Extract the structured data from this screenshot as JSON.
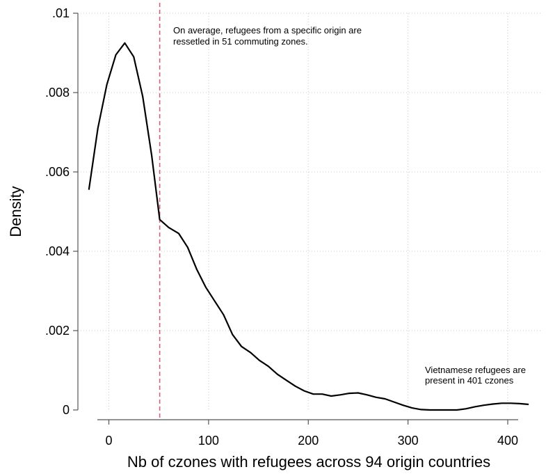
{
  "chart_data": {
    "type": "line",
    "xlabel": "Nb of czones with refugees across 94 origin countries",
    "ylabel": "Density",
    "xlim": [
      -20,
      423
    ],
    "ylim": [
      0,
      0.01
    ],
    "x_ticks": [
      0,
      100,
      200,
      300,
      400
    ],
    "x_tick_labels": [
      "0",
      "100",
      "200",
      "300",
      "400"
    ],
    "y_ticks": [
      0,
      0.002,
      0.004,
      0.006,
      0.008,
      0.01
    ],
    "y_tick_labels": [
      "0",
      ".002",
      ".004",
      ".006",
      ".008",
      ".01"
    ],
    "grid": true,
    "line_color": "#000000",
    "reference_line_color": "#d9607a",
    "reference_line_x": 51,
    "series": [
      {
        "x": [
          -20,
          -11,
          -2,
          7,
          16,
          25,
          34,
          43,
          51,
          60,
          70,
          79,
          88,
          97,
          106,
          115,
          124,
          133,
          142,
          151,
          160,
          169,
          178,
          187,
          196,
          205,
          214,
          223,
          232,
          241,
          250,
          259,
          268,
          277,
          286,
          295,
          304,
          313,
          322,
          331,
          340,
          349,
          358,
          367,
          376,
          385,
          394,
          403,
          412,
          421
        ],
        "y": [
          0.00555,
          0.0071,
          0.0082,
          0.00895,
          0.00925,
          0.0089,
          0.0079,
          0.0064,
          0.0048,
          0.0046,
          0.00445,
          0.0041,
          0.00355,
          0.0031,
          0.00275,
          0.0024,
          0.0019,
          0.0016,
          0.00145,
          0.00125,
          0.0011,
          0.0009,
          0.00075,
          0.0006,
          0.00048,
          0.0004,
          0.0004,
          0.00035,
          0.00038,
          0.00042,
          0.00043,
          0.00038,
          0.00032,
          0.00028,
          0.0002,
          0.00012,
          5e-05,
          1e-05,
          0.0,
          0.0,
          0.0,
          0.0,
          3e-05,
          8e-05,
          0.00012,
          0.00015,
          0.00017,
          0.00017,
          0.00016,
          0.00014
        ]
      }
    ],
    "annotations": [
      {
        "lines": [
          "On average, refugees from a specific origin are",
          "ressetled in 51 commuting zones."
        ]
      },
      {
        "lines": [
          "Vietnamese refugees are",
          "present in 401 czones"
        ]
      }
    ]
  }
}
